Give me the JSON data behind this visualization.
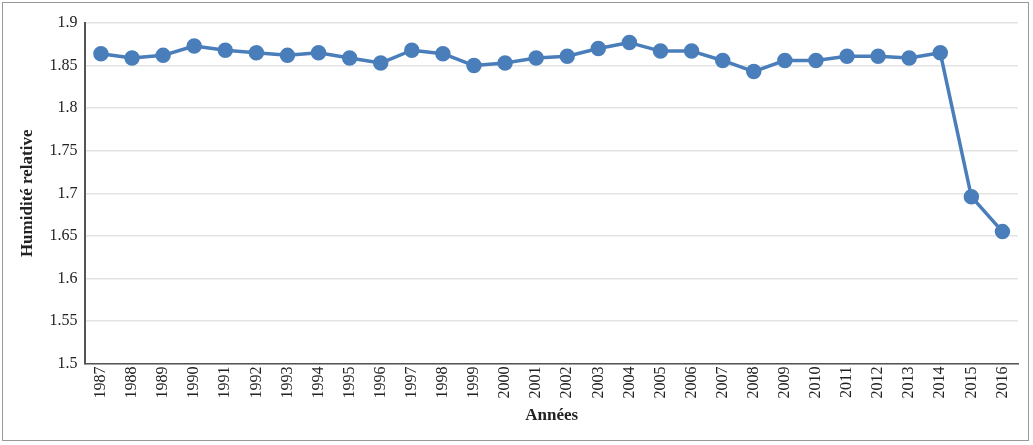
{
  "chart_data": {
    "type": "line",
    "xlabel": "Années",
    "ylabel": "Humidité relative",
    "categories": [
      "1987",
      "1988",
      "1989",
      "1990",
      "1991",
      "1992",
      "1993",
      "1994",
      "1995",
      "1996",
      "1997",
      "1998",
      "1999",
      "2000",
      "2001",
      "2002",
      "2003",
      "2004",
      "2005",
      "2006",
      "2007",
      "2008",
      "2009",
      "2010",
      "2011",
      "2012",
      "2013",
      "2014",
      "2015",
      "2016"
    ],
    "series": [
      {
        "color": "#4a7ebb",
        "values": [
          1.864,
          1.859,
          1.862,
          1.873,
          1.868,
          1.865,
          1.862,
          1.865,
          1.859,
          1.853,
          1.868,
          1.864,
          1.85,
          1.853,
          1.859,
          1.861,
          1.87,
          1.877,
          1.867,
          1.867,
          1.856,
          1.843,
          1.856,
          1.856,
          1.861,
          1.861,
          1.859,
          1.865,
          1.696,
          1.655
        ]
      }
    ],
    "ylim": [
      1.5,
      1.9
    ],
    "yticks": [
      1.5,
      1.55,
      1.6,
      1.65,
      1.7,
      1.75,
      1.8,
      1.85,
      1.9
    ],
    "grid": "y",
    "marker": "circle",
    "line_style": "solid",
    "legend": false
  }
}
